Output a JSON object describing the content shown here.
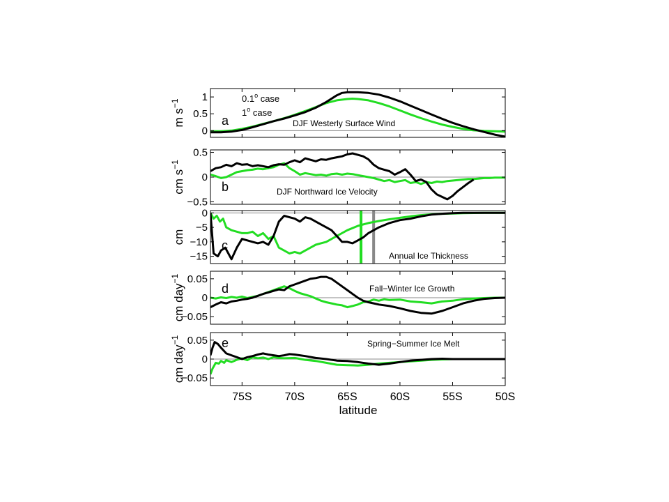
{
  "colors": {
    "fine": "#22dd22",
    "coarse": "#000000",
    "gray_line": "#888888",
    "zero_line": "#888888"
  },
  "xaxis": {
    "label": "latitude",
    "ticks": [
      {
        "value": -75,
        "label": "75S"
      },
      {
        "value": -70,
        "label": "70S"
      },
      {
        "value": -65,
        "label": "65S"
      },
      {
        "value": -60,
        "label": "60S"
      },
      {
        "value": -55,
        "label": "55S"
      },
      {
        "value": -50,
        "label": "50S"
      }
    ]
  },
  "legend": {
    "fine_label_base": "0.1",
    "fine_label_tail": " case",
    "coarse_label_base": "1",
    "coarse_label_tail": " case",
    "degree_sup": "o"
  },
  "chart_data": [
    {
      "type": "line",
      "panel_letter": "a",
      "annotation": "DJF Westerly Surface Wind",
      "ylabel_base": "m s",
      "ylabel_sup": "−1",
      "xlim": [
        -78,
        -50
      ],
      "ylim": [
        -0.2,
        1.25
      ],
      "yticks": [
        {
          "value": 0,
          "label": "0"
        },
        {
          "value": 0.5,
          "label": "0.5"
        },
        {
          "value": 1,
          "label": "1"
        }
      ],
      "series": [
        {
          "key": "fine",
          "x": [
            -78,
            -77,
            -76,
            -75,
            -74,
            -73,
            -72,
            -71,
            -70,
            -69,
            -68,
            -67,
            -66,
            -65,
            -64.5,
            -64,
            -63,
            -62,
            -61,
            -60,
            -59,
            -58,
            -57,
            -56,
            -55,
            -54,
            -53,
            -52,
            -51,
            -50
          ],
          "y": [
            -0.02,
            -0.02,
            0.0,
            0.05,
            0.12,
            0.2,
            0.28,
            0.37,
            0.47,
            0.58,
            0.7,
            0.82,
            0.9,
            0.94,
            0.95,
            0.94,
            0.9,
            0.82,
            0.72,
            0.6,
            0.48,
            0.37,
            0.27,
            0.18,
            0.11,
            0.05,
            0.01,
            -0.01,
            -0.02,
            -0.03
          ]
        },
        {
          "key": "coarse",
          "x": [
            -78,
            -77,
            -76,
            -75,
            -74,
            -73,
            -72,
            -71,
            -70,
            -69,
            -68,
            -67,
            -66,
            -65.5,
            -65,
            -64,
            -63,
            -62,
            -61,
            -60,
            -59,
            -58,
            -57,
            -56,
            -55,
            -54,
            -53,
            -52,
            -51,
            -50
          ],
          "y": [
            -0.05,
            -0.05,
            -0.03,
            0.02,
            0.1,
            0.19,
            0.28,
            0.36,
            0.45,
            0.55,
            0.68,
            0.85,
            1.05,
            1.12,
            1.14,
            1.14,
            1.12,
            1.07,
            0.98,
            0.87,
            0.74,
            0.61,
            0.48,
            0.35,
            0.23,
            0.13,
            0.04,
            -0.04,
            -0.12,
            -0.18
          ]
        }
      ]
    },
    {
      "type": "line",
      "panel_letter": "b",
      "annotation": "DJF Northward Ice Velocity",
      "ylabel_base": "cm s",
      "ylabel_sup": "−1",
      "xlim": [
        -78,
        -50
      ],
      "ylim": [
        -0.55,
        0.55
      ],
      "yticks": [
        {
          "value": -0.5,
          "label": "−0.5"
        },
        {
          "value": 0,
          "label": "0"
        },
        {
          "value": 0.5,
          "label": "0.5"
        }
      ],
      "series": [
        {
          "key": "fine",
          "x": [
            -78,
            -77.5,
            -77,
            -76.5,
            -76,
            -75.5,
            -75,
            -74.5,
            -74,
            -73.5,
            -73,
            -72.5,
            -72,
            -71.5,
            -71,
            -70.5,
            -70,
            -69.5,
            -69,
            -68.5,
            -68,
            -67.5,
            -67,
            -66.5,
            -66,
            -65.5,
            -65,
            -64.5,
            -64,
            -63.5,
            -63,
            -62.5,
            -62,
            -61.5,
            -61,
            -60.5,
            -60,
            -59.5,
            -59,
            -58.5,
            -58,
            -57.5,
            -57,
            -56.5,
            -56,
            -55.5,
            -55,
            -54.5,
            -54,
            -53.5,
            -53,
            -52.5,
            -52,
            -51.5,
            -51,
            -50.5,
            -50
          ],
          "y": [
            0.05,
            0.02,
            -0.02,
            0.0,
            0.05,
            0.1,
            0.12,
            0.14,
            0.15,
            0.17,
            0.16,
            0.18,
            0.2,
            0.25,
            0.28,
            0.18,
            0.12,
            0.05,
            0.08,
            0.06,
            0.04,
            0.05,
            0.03,
            0.06,
            0.07,
            0.05,
            0.07,
            0.06,
            0.04,
            0.02,
            0.0,
            -0.02,
            -0.05,
            -0.08,
            -0.06,
            -0.1,
            -0.08,
            -0.06,
            -0.12,
            -0.1,
            -0.14,
            -0.1,
            -0.12,
            -0.09,
            -0.1,
            -0.08,
            -0.07,
            -0.06,
            -0.05,
            -0.04,
            -0.04,
            -0.03,
            -0.02,
            -0.02,
            -0.01,
            -0.01,
            -0.01
          ]
        },
        {
          "key": "coarse",
          "x": [
            -78,
            -77.5,
            -77,
            -76.5,
            -76,
            -75.5,
            -75,
            -74.5,
            -74,
            -73.5,
            -73,
            -72.5,
            -72,
            -71.5,
            -71,
            -70.5,
            -70,
            -69.5,
            -69,
            -68.5,
            -68,
            -67.5,
            -67,
            -66.5,
            -66,
            -65.5,
            -65,
            -64.5,
            -64,
            -63.5,
            -63,
            -62.5,
            -62,
            -61.5,
            -61,
            -60.5,
            -60,
            -59.5,
            -59,
            -58.5,
            -58,
            -57.5,
            -57,
            -56.5,
            -56,
            -55.5,
            -55,
            -54.5,
            -54,
            -53.5,
            -53
          ],
          "y": [
            0.12,
            0.18,
            0.2,
            0.25,
            0.22,
            0.28,
            0.25,
            0.26,
            0.22,
            0.24,
            0.22,
            0.2,
            0.24,
            0.26,
            0.25,
            0.3,
            0.34,
            0.3,
            0.38,
            0.35,
            0.32,
            0.36,
            0.35,
            0.38,
            0.4,
            0.42,
            0.46,
            0.48,
            0.45,
            0.42,
            0.36,
            0.25,
            0.18,
            0.15,
            0.12,
            0.05,
            0.1,
            0.16,
            0.05,
            -0.08,
            -0.05,
            -0.1,
            -0.25,
            -0.35,
            -0.4,
            -0.45,
            -0.38,
            -0.28,
            -0.2,
            -0.12,
            -0.05
          ]
        }
      ]
    },
    {
      "type": "line",
      "panel_letter": "c",
      "annotation": "Annual Ice Thickness",
      "ylabel_base": "cm",
      "ylabel_sup": "",
      "xlim": [
        -78,
        -50
      ],
      "ylim": [
        -17.5,
        0.8
      ],
      "yticks": [
        {
          "value": -15,
          "label": "−15"
        },
        {
          "value": -10,
          "label": "−10"
        },
        {
          "value": -5,
          "label": "−5"
        },
        {
          "value": 0,
          "label": "0"
        }
      ],
      "vlines": [
        {
          "key": "fine",
          "x": -63.7
        },
        {
          "key": "gray_line",
          "x": -62.5
        }
      ],
      "series": [
        {
          "key": "fine",
          "x": [
            -78,
            -77.7,
            -77.4,
            -77.1,
            -76.8,
            -76.5,
            -76,
            -75.5,
            -75,
            -74.5,
            -74,
            -73.5,
            -73,
            -72.5,
            -72,
            -71.5,
            -71,
            -70.5,
            -70,
            -69.5,
            -69,
            -68.5,
            -68,
            -67.5,
            -67,
            -66,
            -65,
            -64,
            -63,
            -62,
            -61,
            -60,
            -59,
            -58,
            -57,
            -56,
            -55,
            -54,
            -53,
            -52,
            -51,
            -50
          ],
          "y": [
            0,
            -2,
            -1,
            -3,
            -2,
            -5,
            -6,
            -6.5,
            -7,
            -7,
            -6.5,
            -8,
            -7,
            -9,
            -8,
            -12,
            -13,
            -14,
            -13.5,
            -14,
            -13,
            -12,
            -11,
            -10.5,
            -10,
            -8,
            -6,
            -4.5,
            -3.5,
            -2.8,
            -2.2,
            -1.7,
            -1.2,
            -0.8,
            -0.5,
            -0.3,
            -0.2,
            -0.1,
            -0.05,
            0,
            0,
            0
          ]
        },
        {
          "key": "coarse",
          "x": [
            -78,
            -77.7,
            -77.3,
            -77,
            -76.6,
            -76.3,
            -76,
            -75.5,
            -75,
            -74.5,
            -74,
            -73.5,
            -73,
            -72.5,
            -72,
            -71.5,
            -71,
            -70.5,
            -70,
            -69.5,
            -69,
            -68.5,
            -68,
            -67.5,
            -67,
            -66.5,
            -66,
            -65.5,
            -65,
            -64.5,
            -64,
            -63.5,
            -63,
            -62,
            -61,
            -60,
            -59,
            -58,
            -57,
            -56,
            -55,
            -54,
            -53,
            -52,
            -51,
            -50
          ],
          "y": [
            0,
            -14,
            -15,
            -13,
            -12,
            -14,
            -16,
            -12,
            -9,
            -9.5,
            -10,
            -10.5,
            -10,
            -11,
            -8,
            -3,
            -1,
            -1.5,
            -2,
            -3,
            -1.5,
            -2,
            -3,
            -4,
            -5,
            -6,
            -8,
            -10,
            -10,
            -10.5,
            -9.5,
            -8.5,
            -7,
            -5,
            -3.5,
            -2.5,
            -2,
            -1.2,
            -0.6,
            -0.3,
            -0.1,
            0,
            0,
            0,
            0,
            0
          ]
        }
      ]
    },
    {
      "type": "line",
      "panel_letter": "d",
      "annotation": "Fall−Winter Ice Growth",
      "ylabel_base": "cm day",
      "ylabel_sup": "−1",
      "xlim": [
        -78,
        -50
      ],
      "ylim": [
        -0.07,
        0.07
      ],
      "yticks": [
        {
          "value": -0.05,
          "label": "−0.05"
        },
        {
          "value": 0,
          "label": "0"
        },
        {
          "value": 0.05,
          "label": "0.05"
        }
      ],
      "series": [
        {
          "key": "fine",
          "x": [
            -78,
            -77.5,
            -77,
            -76.5,
            -76,
            -75.5,
            -75,
            -74.5,
            -74,
            -73.5,
            -73,
            -72.5,
            -72,
            -71.5,
            -71,
            -70.5,
            -70,
            -69.5,
            -69,
            -68.5,
            -68,
            -67.5,
            -67,
            -66.5,
            -66,
            -65.5,
            -65,
            -64.5,
            -64,
            -63.5,
            -63,
            -62.5,
            -62,
            -61.5,
            -61,
            -60,
            -59,
            -58,
            -57,
            -56,
            -55,
            -54,
            -53,
            -52,
            -51,
            -50
          ],
          "y": [
            0,
            -0.002,
            0.001,
            -0.001,
            0.002,
            0.0,
            0.003,
            -0.001,
            0.002,
            0.005,
            0.01,
            0.015,
            0.02,
            0.025,
            0.03,
            0.025,
            0.018,
            0.012,
            0.008,
            0.004,
            -0.002,
            -0.008,
            -0.012,
            -0.015,
            -0.018,
            -0.02,
            -0.025,
            -0.022,
            -0.018,
            -0.012,
            -0.01,
            -0.005,
            -0.008,
            -0.004,
            -0.006,
            -0.005,
            -0.01,
            -0.012,
            -0.015,
            -0.01,
            -0.008,
            -0.004,
            -0.002,
            -0.001,
            0,
            0
          ]
        },
        {
          "key": "coarse",
          "x": [
            -78,
            -77.5,
            -77,
            -76.5,
            -76,
            -75.5,
            -75,
            -74.5,
            -74,
            -73.5,
            -73,
            -72.5,
            -72,
            -71.5,
            -71,
            -70.5,
            -70,
            -69.5,
            -69,
            -68.5,
            -68,
            -67.5,
            -67,
            -66.5,
            -66,
            -65.5,
            -65,
            -64.5,
            -64,
            -63.5,
            -63,
            -62.5,
            -62,
            -61,
            -60,
            -59,
            -58,
            -57,
            -56,
            -55,
            -54,
            -53,
            -52,
            -51,
            -50
          ],
          "y": [
            -0.025,
            -0.018,
            -0.012,
            -0.015,
            -0.01,
            -0.008,
            -0.005,
            -0.003,
            0.0,
            0.005,
            0.01,
            0.014,
            0.018,
            0.022,
            0.02,
            0.03,
            0.035,
            0.04,
            0.045,
            0.05,
            0.052,
            0.055,
            0.055,
            0.05,
            0.04,
            0.03,
            0.02,
            0.01,
            0.0,
            -0.008,
            -0.012,
            -0.015,
            -0.018,
            -0.022,
            -0.028,
            -0.035,
            -0.04,
            -0.042,
            -0.035,
            -0.025,
            -0.015,
            -0.008,
            -0.003,
            -0.001,
            0
          ]
        }
      ]
    },
    {
      "type": "line",
      "panel_letter": "e",
      "annotation": "Spring−Summer Ice Melt",
      "ylabel_base": "cm day",
      "ylabel_sup": "−1",
      "xlim": [
        -78,
        -50
      ],
      "ylim": [
        -0.07,
        0.07
      ],
      "yticks": [
        {
          "value": -0.05,
          "label": "−0.05"
        },
        {
          "value": 0,
          "label": "0"
        },
        {
          "value": 0.05,
          "label": "0.05"
        }
      ],
      "series": [
        {
          "key": "fine",
          "x": [
            -78,
            -77.8,
            -77.5,
            -77.2,
            -77,
            -76.7,
            -76.5,
            -76,
            -75.5,
            -75,
            -74.5,
            -74,
            -73.5,
            -73,
            -72.5,
            -72,
            -71.5,
            -71,
            -70,
            -69,
            -68,
            -67,
            -66,
            -65,
            -64,
            -63,
            -62,
            -61,
            -60,
            -59,
            -58,
            -57,
            -56,
            -55,
            -54,
            -53,
            -52,
            -51,
            -50
          ],
          "y": [
            -0.04,
            -0.025,
            -0.01,
            -0.012,
            -0.005,
            -0.01,
            -0.003,
            -0.008,
            -0.002,
            0.002,
            -0.003,
            0.005,
            0.002,
            0.004,
            0.0,
            0.005,
            0.003,
            0.002,
            0.003,
            -0.002,
            -0.005,
            -0.01,
            -0.015,
            -0.016,
            -0.017,
            -0.015,
            -0.012,
            -0.01,
            -0.008,
            -0.006,
            -0.004,
            -0.002,
            -0.001,
            0,
            0,
            0,
            0,
            0,
            0
          ]
        },
        {
          "key": "coarse",
          "x": [
            -78,
            -77.8,
            -77.6,
            -77.3,
            -77,
            -76.5,
            -76,
            -75.5,
            -75,
            -74.5,
            -74,
            -73.5,
            -73,
            -72.5,
            -72,
            -71.5,
            -71,
            -70.5,
            -70,
            -69.5,
            -69,
            -68,
            -67,
            -66,
            -65,
            -64,
            -63,
            -62,
            -61,
            -60,
            -59,
            -58,
            -57,
            -56,
            -55,
            -54,
            -53,
            -52,
            -51,
            -50
          ],
          "y": [
            0.01,
            0.03,
            0.045,
            0.04,
            0.03,
            0.015,
            0.01,
            0.005,
            0.0,
            0.005,
            0.008,
            0.012,
            0.015,
            0.012,
            0.01,
            0.008,
            0.01,
            0.013,
            0.012,
            0.01,
            0.008,
            0.003,
            0.0,
            -0.004,
            -0.005,
            -0.008,
            -0.012,
            -0.015,
            -0.012,
            -0.008,
            -0.004,
            -0.002,
            0.0,
            0.001,
            0.0,
            0.0,
            0.0,
            0.0,
            0.0,
            0.0
          ]
        }
      ]
    }
  ]
}
